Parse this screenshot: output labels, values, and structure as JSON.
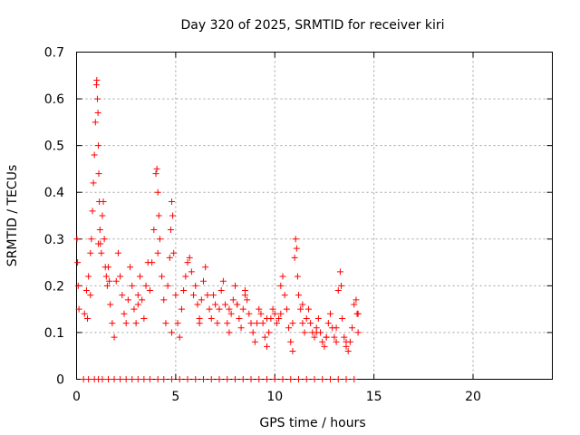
{
  "chart_data": {
    "type": "scatter",
    "title": "Day 320 of 2025, SRMTID for receiver kiri",
    "xlabel": "GPS time / hours",
    "ylabel": "SRMTID / TECUs",
    "xlim": [
      0,
      24
    ],
    "ylim": [
      0,
      0.7
    ],
    "xticks": [
      0,
      5,
      10,
      15,
      20
    ],
    "yticks": [
      0,
      0.1,
      0.2,
      0.3,
      0.4,
      0.5,
      0.6,
      0.7
    ],
    "xtick_labels": [
      "0",
      "5",
      "10",
      "15",
      "20"
    ],
    "ytick_labels": [
      "0",
      "0.1",
      "0.2",
      "0.3",
      "0.4",
      "0.5",
      "0.6",
      "0.7"
    ],
    "grid": true,
    "marker": "+",
    "series": [
      {
        "name": "SRMTID",
        "color": "#ff0000",
        "x": [
          0.02,
          0.05,
          0.08,
          0.12,
          0.4,
          0.5,
          0.6,
          0.7,
          0.75,
          0.8,
          0.85,
          0.9,
          0.95,
          1.0,
          1.02,
          1.05,
          1.08,
          1.1,
          1.12,
          1.15,
          1.18,
          1.2,
          1.25,
          1.3,
          1.35,
          1.4,
          1.45,
          1.5,
          1.55,
          1.6,
          1.65,
          1.7,
          1.8,
          1.9,
          2.0,
          2.1,
          2.2,
          2.3,
          2.4,
          2.5,
          2.6,
          2.7,
          2.8,
          2.9,
          3.0,
          3.1,
          3.2,
          3.3,
          3.4,
          3.5,
          3.6,
          3.7,
          3.8,
          3.9,
          4.0,
          4.05,
          4.1,
          4.15,
          4.2,
          4.3,
          4.4,
          4.5,
          4.6,
          4.7,
          4.75,
          4.8,
          4.85,
          4.9,
          5.0,
          5.1,
          5.2,
          5.3,
          5.4,
          5.5,
          5.6,
          5.7,
          5.8,
          5.9,
          6.0,
          6.1,
          6.2,
          6.3,
          6.4,
          6.5,
          6.6,
          6.7,
          6.8,
          6.9,
          7.0,
          7.1,
          7.2,
          7.3,
          7.4,
          7.5,
          7.6,
          7.7,
          7.8,
          7.9,
          8.0,
          8.1,
          8.2,
          8.3,
          8.4,
          8.5,
          8.6,
          8.7,
          8.8,
          8.9,
          9.0,
          9.1,
          9.2,
          9.3,
          9.4,
          9.5,
          9.6,
          9.7,
          9.8,
          9.9,
          10.0,
          10.1,
          10.2,
          10.3,
          10.4,
          10.5,
          10.6,
          10.7,
          10.8,
          10.9,
          11.0,
          11.05,
          11.1,
          11.15,
          11.2,
          11.3,
          11.4,
          11.5,
          11.6,
          11.7,
          11.8,
          11.9,
          12.0,
          12.1,
          12.2,
          12.3,
          12.4,
          12.5,
          12.6,
          12.7,
          12.8,
          12.9,
          13.0,
          13.1,
          13.2,
          13.3,
          13.35,
          13.4,
          13.5,
          13.6,
          13.7,
          13.8,
          13.9,
          14.0,
          14.1,
          14.15,
          14.2,
          0.35,
          0.6,
          0.9,
          1.1,
          1.3,
          1.6,
          1.9,
          2.2,
          2.5,
          2.8,
          3.1,
          3.4,
          3.7,
          4.1,
          4.4,
          4.8,
          5.2,
          5.6,
          6.0,
          6.4,
          6.8,
          7.2,
          7.6,
          8.0,
          8.4,
          8.8,
          9.2,
          9.6,
          10.0,
          10.4,
          10.8,
          11.2,
          11.6,
          12.0,
          12.4,
          12.8,
          13.2,
          13.6,
          14.0,
          0.55,
          0.7,
          1.1,
          3.1,
          4.1,
          4.8,
          6.2,
          7.7,
          8.1,
          8.5,
          9.6,
          10.3,
          10.9,
          11.4,
          12.1,
          12.6,
          13.1,
          13.6,
          14.2
        ],
        "y": [
          0.3,
          0.25,
          0.2,
          0.15,
          0.14,
          0.19,
          0.22,
          0.27,
          0.3,
          0.36,
          0.42,
          0.48,
          0.55,
          0.63,
          0.64,
          0.6,
          0.57,
          0.5,
          0.44,
          0.38,
          0.32,
          0.29,
          0.27,
          0.35,
          0.38,
          0.3,
          0.24,
          0.22,
          0.2,
          0.24,
          0.21,
          0.16,
          0.12,
          0.09,
          0.21,
          0.27,
          0.22,
          0.18,
          0.14,
          0.12,
          0.17,
          0.24,
          0.2,
          0.15,
          0.12,
          0.18,
          0.22,
          0.17,
          0.13,
          0.2,
          0.25,
          0.19,
          0.25,
          0.32,
          0.44,
          0.45,
          0.4,
          0.35,
          0.3,
          0.22,
          0.17,
          0.12,
          0.2,
          0.26,
          0.32,
          0.38,
          0.35,
          0.27,
          0.18,
          0.12,
          0.09,
          0.15,
          0.19,
          0.22,
          0.25,
          0.26,
          0.23,
          0.18,
          0.2,
          0.16,
          0.12,
          0.17,
          0.21,
          0.24,
          0.18,
          0.15,
          0.13,
          0.18,
          0.16,
          0.12,
          0.15,
          0.19,
          0.21,
          0.16,
          0.12,
          0.1,
          0.14,
          0.17,
          0.2,
          0.16,
          0.13,
          0.11,
          0.15,
          0.19,
          0.17,
          0.14,
          0.12,
          0.1,
          0.08,
          0.12,
          0.15,
          0.14,
          0.12,
          0.09,
          0.07,
          0.1,
          0.13,
          0.15,
          0.14,
          0.12,
          0.13,
          0.2,
          0.22,
          0.18,
          0.15,
          0.11,
          0.08,
          0.12,
          0.26,
          0.3,
          0.28,
          0.22,
          0.18,
          0.15,
          0.12,
          0.1,
          0.13,
          0.15,
          0.12,
          0.1,
          0.09,
          0.11,
          0.13,
          0.1,
          0.08,
          0.07,
          0.09,
          0.12,
          0.14,
          0.11,
          0.09,
          0.08,
          0.19,
          0.23,
          0.2,
          0.13,
          0.09,
          0.07,
          0.06,
          0.08,
          0.11,
          0.16,
          0.17,
          0.14,
          0.1,
          0.0,
          0.0,
          0.0,
          0.0,
          0.0,
          0.0,
          0.0,
          0.0,
          0.0,
          0.0,
          0.0,
          0.0,
          0.0,
          0.0,
          0.0,
          0.0,
          0.0,
          0.0,
          0.0,
          0.0,
          0.0,
          0.0,
          0.0,
          0.0,
          0.0,
          0.0,
          0.0,
          0.0,
          0.0,
          0.0,
          0.0,
          0.0,
          0.0,
          0.0,
          0.0,
          0.0,
          0.0,
          0.0,
          0.0,
          0.13,
          0.18,
          0.29,
          0.16,
          0.27,
          0.1,
          0.13,
          0.15,
          0.16,
          0.18,
          0.13,
          0.14,
          0.06,
          0.16,
          0.1,
          0.09,
          0.11,
          0.08,
          0.14
        ]
      }
    ]
  }
}
